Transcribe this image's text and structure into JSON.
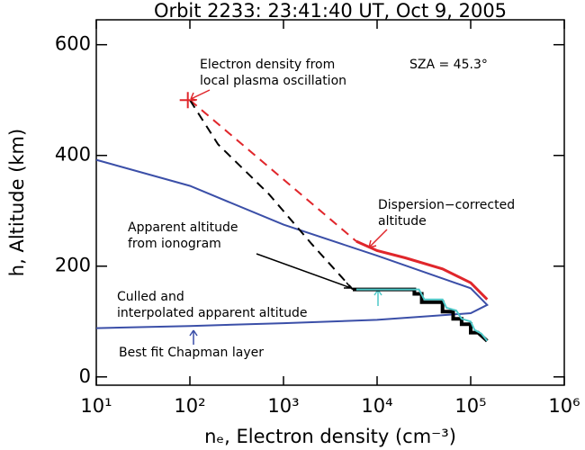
{
  "chart_data": {
    "type": "line",
    "title": "Orbit 2233:  23:41:40 UT, Oct  9, 2005",
    "xlabel": "nₑ, Electron density (cm⁻³)",
    "ylabel": "h, Altitude (km)",
    "xlog": true,
    "xlim": [
      10,
      1000000
    ],
    "ylim": [
      -15,
      645
    ],
    "xticks": [
      {
        "value": 10,
        "label": "10¹"
      },
      {
        "value": 100,
        "label": "10²"
      },
      {
        "value": 1000,
        "label": "10³"
      },
      {
        "value": 10000,
        "label": "10⁴"
      },
      {
        "value": 100000,
        "label": "10⁵"
      },
      {
        "value": 1000000,
        "label": "10⁶"
      }
    ],
    "yticks": [
      0,
      200,
      400,
      600
    ],
    "series": [
      {
        "color": "#3b4fa8",
        "width": 2,
        "dash": "none",
        "x": [
          10,
          100,
          1000,
          10000,
          100000,
          150000,
          100000,
          10000,
          1000,
          100,
          10
        ],
        "values": [
          392,
          345,
          275,
          219,
          160,
          130,
          115,
          103,
          97,
          92,
          88
        ]
      },
      {
        "color": "#e0262b",
        "width": 3,
        "dash": "none",
        "x": [
          6000,
          10000,
          20000,
          50000,
          100000,
          150000
        ],
        "values": [
          245,
          228,
          215,
          195,
          170,
          140
        ]
      },
      {
        "color": "#e0262b",
        "width": 2,
        "dash": "10,7",
        "x": [
          100,
          6000
        ],
        "values": [
          500,
          245
        ]
      },
      {
        "color": "#000000",
        "width": 2,
        "dash": "10,7",
        "x": [
          100,
          200,
          700,
          2000,
          5500
        ],
        "values": [
          500,
          420,
          330,
          240,
          158
        ]
      },
      {
        "color": "#000000",
        "width": 4,
        "dash": "none",
        "x": [
          5500,
          25000,
          25000,
          30000,
          30000,
          50000,
          50000,
          65000,
          65000,
          80000,
          80000,
          100000,
          100000,
          120000,
          150000
        ],
        "values": [
          158,
          158,
          150,
          150,
          135,
          135,
          118,
          118,
          105,
          105,
          95,
          95,
          80,
          80,
          65
        ]
      },
      {
        "color": "#4fc9c9",
        "width": 2,
        "dash": "none",
        "x": [
          6000,
          28000,
          32000,
          50000,
          55000,
          70000,
          80000,
          100000,
          110000,
          130000,
          150000
        ],
        "values": [
          158,
          158,
          140,
          140,
          125,
          120,
          105,
          100,
          85,
          78,
          65
        ]
      }
    ],
    "marker": {
      "x": 95,
      "value": 500,
      "color": "#e0262b"
    },
    "annotations": [
      {
        "lines": [
          "Electron density from",
          "local plasma oscillation"
        ]
      },
      {
        "lines": [
          "SZA =  45.3°"
        ]
      },
      {
        "lines": [
          "Dispersion−corrected",
          "altitude"
        ]
      },
      {
        "lines": [
          "Apparent altitude",
          "from ionogram"
        ]
      },
      {
        "lines": [
          "Culled and",
          "interpolated apparent altitude"
        ]
      },
      {
        "lines": [
          "Best fit Chapman layer"
        ]
      }
    ]
  }
}
